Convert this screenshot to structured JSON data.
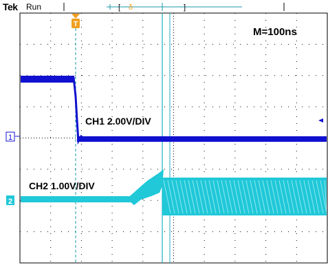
{
  "status": {
    "brand": "Tek",
    "state": "Run",
    "trigger_marker": "T"
  },
  "settings": {
    "timebase": "M=100ns",
    "ch1": "CH1 2.00V/DIV",
    "ch2": "CH2 1.00V/DIV",
    "ch1_marker": "1",
    "ch2_marker": "2"
  },
  "colors": {
    "ch1": "#1010d0",
    "ch2": "#20c8d8",
    "grid": "#000000",
    "trigger": "#f0a020"
  }
}
